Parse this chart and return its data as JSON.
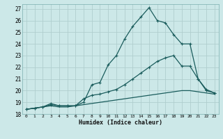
{
  "xlabel": "Humidex (Indice chaleur)",
  "bg_color": "#cce8e8",
  "grid_color": "#b0cece",
  "line_color": "#1a5c5c",
  "xlim": [
    -0.5,
    23.5
  ],
  "ylim": [
    18,
    27.4
  ],
  "xticks": [
    0,
    1,
    2,
    3,
    4,
    5,
    6,
    7,
    8,
    9,
    10,
    11,
    12,
    13,
    14,
    15,
    16,
    17,
    18,
    19,
    20,
    21,
    22,
    23
  ],
  "yticks": [
    18,
    19,
    20,
    21,
    22,
    23,
    24,
    25,
    26,
    27
  ],
  "line1_x": [
    0,
    1,
    2,
    3,
    4,
    5,
    6,
    7,
    8,
    9,
    10,
    11,
    12,
    13,
    14,
    15,
    16,
    17,
    18,
    19,
    20,
    21,
    22,
    23
  ],
  "line1_y": [
    18.4,
    18.5,
    18.6,
    18.9,
    18.7,
    18.7,
    18.7,
    19.0,
    20.5,
    20.7,
    22.2,
    23.0,
    24.4,
    25.5,
    26.3,
    27.1,
    26.0,
    25.8,
    24.8,
    24.0,
    24.0,
    21.0,
    20.0,
    19.8
  ],
  "line2_x": [
    0,
    1,
    2,
    3,
    4,
    5,
    6,
    7,
    8,
    9,
    10,
    11,
    12,
    13,
    14,
    15,
    16,
    17,
    18,
    19,
    20,
    21,
    22,
    23
  ],
  "line2_y": [
    18.4,
    18.5,
    18.6,
    18.8,
    18.7,
    18.7,
    18.7,
    19.3,
    19.6,
    19.7,
    19.9,
    20.1,
    20.5,
    21.0,
    21.5,
    22.0,
    22.5,
    22.8,
    23.0,
    22.1,
    22.1,
    21.0,
    20.1,
    19.8
  ],
  "line3_x": [
    0,
    1,
    2,
    3,
    4,
    5,
    6,
    7,
    8,
    9,
    10,
    11,
    12,
    13,
    14,
    15,
    16,
    17,
    18,
    19,
    20,
    21,
    22,
    23
  ],
  "line3_y": [
    18.4,
    18.5,
    18.6,
    18.7,
    18.6,
    18.6,
    18.7,
    18.8,
    18.9,
    19.0,
    19.1,
    19.2,
    19.3,
    19.4,
    19.5,
    19.6,
    19.7,
    19.8,
    19.9,
    20.0,
    20.0,
    19.9,
    19.8,
    19.7
  ]
}
